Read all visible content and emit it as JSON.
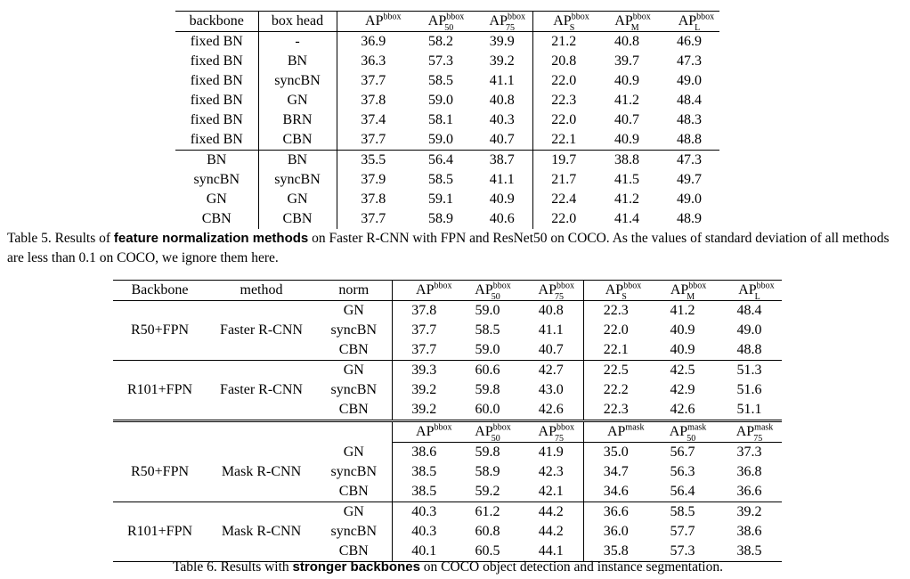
{
  "table5": {
    "headers": [
      "backbone",
      "box head"
    ],
    "ap_headers": [
      [
        "AP",
        "bbox",
        ""
      ],
      [
        "AP",
        "bbox",
        "50"
      ],
      [
        "AP",
        "bbox",
        "75"
      ],
      [
        "AP",
        "bbox",
        "S"
      ],
      [
        "AP",
        "bbox",
        "M"
      ],
      [
        "AP",
        "bbox",
        "L"
      ]
    ],
    "rows": [
      [
        "fixed BN",
        "-",
        "36.9",
        "58.2",
        "39.9",
        "21.2",
        "40.8",
        "46.9"
      ],
      [
        "fixed BN",
        "BN",
        "36.3",
        "57.3",
        "39.2",
        "20.8",
        "39.7",
        "47.3"
      ],
      [
        "fixed BN",
        "syncBN",
        "37.7",
        "58.5",
        "41.1",
        "22.0",
        "40.9",
        "49.0"
      ],
      [
        "fixed BN",
        "GN",
        "37.8",
        "59.0",
        "40.8",
        "22.3",
        "41.2",
        "48.4"
      ],
      [
        "fixed BN",
        "BRN",
        "37.4",
        "58.1",
        "40.3",
        "22.0",
        "40.7",
        "48.3"
      ],
      [
        "fixed BN",
        "CBN",
        "37.7",
        "59.0",
        "40.7",
        "22.1",
        "40.9",
        "48.8"
      ],
      [
        "BN",
        "BN",
        "35.5",
        "56.4",
        "38.7",
        "19.7",
        "38.8",
        "47.3"
      ],
      [
        "syncBN",
        "syncBN",
        "37.9",
        "58.5",
        "41.1",
        "21.7",
        "41.5",
        "49.7"
      ],
      [
        "GN",
        "GN",
        "37.8",
        "59.1",
        "40.9",
        "22.4",
        "41.2",
        "49.0"
      ],
      [
        "CBN",
        "CBN",
        "37.7",
        "58.9",
        "40.6",
        "22.0",
        "41.4",
        "48.9"
      ]
    ],
    "caption_prefix": "Table 5. Results of ",
    "caption_bold": "feature normalization methods",
    "caption_suffix": " on Faster R-CNN with FPN and ResNet50 on COCO. As the values of standard deviation of all methods are less than 0.1 on COCO, we ignore them here."
  },
  "table6": {
    "headers": [
      "Backbone",
      "method",
      "norm"
    ],
    "ap_headers": [
      [
        "AP",
        "bbox",
        ""
      ],
      [
        "AP",
        "bbox",
        "50"
      ],
      [
        "AP",
        "bbox",
        "75"
      ],
      [
        "AP",
        "bbox",
        "S"
      ],
      [
        "AP",
        "bbox",
        "M"
      ],
      [
        "AP",
        "bbox",
        "L"
      ]
    ],
    "mask_headers": [
      [
        "AP",
        "bbox",
        ""
      ],
      [
        "AP",
        "bbox",
        "50"
      ],
      [
        "AP",
        "bbox",
        "75"
      ],
      [
        "AP",
        "mask",
        ""
      ],
      [
        "AP",
        "mask",
        "50"
      ],
      [
        "AP",
        "mask",
        "75"
      ]
    ],
    "groups": [
      {
        "backbone": "R50+FPN",
        "method": "Faster R-CNN",
        "rows": [
          [
            "GN",
            "37.8",
            "59.0",
            "40.8",
            "22.3",
            "41.2",
            "48.4"
          ],
          [
            "syncBN",
            "37.7",
            "58.5",
            "41.1",
            "22.0",
            "40.9",
            "49.0"
          ],
          [
            "CBN",
            "37.7",
            "59.0",
            "40.7",
            "22.1",
            "40.9",
            "48.8"
          ]
        ]
      },
      {
        "backbone": "R101+FPN",
        "method": "Faster R-CNN",
        "rows": [
          [
            "GN",
            "39.3",
            "60.6",
            "42.7",
            "22.5",
            "42.5",
            "51.3"
          ],
          [
            "syncBN",
            "39.2",
            "59.8",
            "43.0",
            "22.2",
            "42.9",
            "51.6"
          ],
          [
            "CBN",
            "39.2",
            "60.0",
            "42.6",
            "22.3",
            "42.6",
            "51.1"
          ]
        ]
      },
      {
        "backbone": "R50+FPN",
        "method": "Mask R-CNN",
        "rows": [
          [
            "GN",
            "38.6",
            "59.8",
            "41.9",
            "35.0",
            "56.7",
            "37.3"
          ],
          [
            "syncBN",
            "38.5",
            "58.9",
            "42.3",
            "34.7",
            "56.3",
            "36.8"
          ],
          [
            "CBN",
            "38.5",
            "59.2",
            "42.1",
            "34.6",
            "56.4",
            "36.6"
          ]
        ]
      },
      {
        "backbone": "R101+FPN",
        "method": "Mask R-CNN",
        "rows": [
          [
            "GN",
            "40.3",
            "61.2",
            "44.2",
            "36.6",
            "58.5",
            "39.2"
          ],
          [
            "syncBN",
            "40.3",
            "60.8",
            "44.2",
            "36.0",
            "57.7",
            "38.6"
          ],
          [
            "CBN",
            "40.1",
            "60.5",
            "44.1",
            "35.8",
            "57.3",
            "38.5"
          ]
        ]
      }
    ],
    "caption_prefix": "Table 6. Results with ",
    "caption_bold": "stronger backbones",
    "caption_suffix": " on COCO object detection and instance segmentation."
  }
}
